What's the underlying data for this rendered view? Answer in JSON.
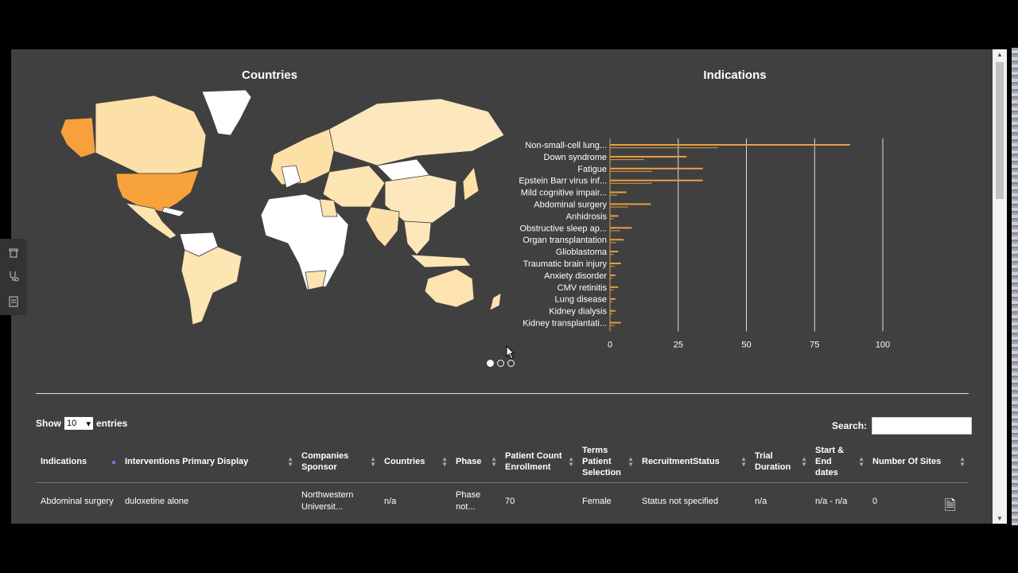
{
  "map": {
    "title": "Countries"
  },
  "chart_data": {
    "type": "bar",
    "title": "Indications",
    "categories": [
      "Non-small-cell lung...",
      "Down syndrome",
      "Fatigue",
      "Epstein Barr virus inf...",
      "Mild cognitive impair...",
      "Abdominal surgery",
      "Anhidrosis",
      "Obstructive sleep ap...",
      "Organ transplantation",
      "Glioblastoma",
      "Traumatic brain injury",
      "Anxiety disorder",
      "CMV retinitis",
      "Lung disease",
      "Kidney dialysis",
      "Kidney transplantati..."
    ],
    "values": [
      88,
      28,
      34,
      34,
      6,
      15,
      3,
      8,
      5,
      3,
      4,
      2,
      3,
      2,
      2,
      4
    ],
    "xticks": [
      "0",
      "25",
      "50",
      "75",
      "100"
    ],
    "xlim": [
      0,
      100
    ],
    "bar_color": "#e8a03e"
  },
  "carousel": {
    "pages": 3,
    "active": 0
  },
  "side_icons": [
    "trash-icon",
    "stethoscope-icon",
    "form-icon"
  ],
  "table": {
    "show_label": "Show",
    "entries_value": "10",
    "entries_label": "entries",
    "search_label": "Search:",
    "columns": [
      "Indications",
      "Interventions Primary Display",
      "Companies Sponsor",
      "Countries",
      "Phase",
      "Patient Count Enrollment",
      "Terms Patient Selection",
      "RecruitmentStatus",
      "Trial Duration",
      "Start & End dates",
      "Number Of Sites"
    ],
    "rows": [
      [
        "Abdominal surgery",
        "duloxetine alone",
        "Northwestern Universit...",
        "n/a",
        "Phase not...",
        "70",
        "Female",
        "Status not specified",
        "n/a",
        "n/a - n/a",
        "0"
      ]
    ]
  }
}
